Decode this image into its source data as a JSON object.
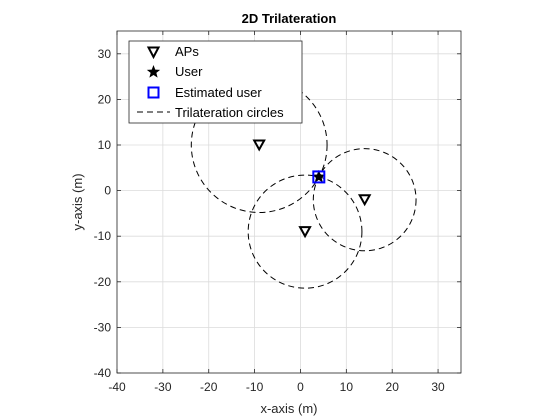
{
  "chart_data": {
    "type": "scatter",
    "title": "2D Trilateration",
    "xlabel": "x-axis (m)",
    "ylabel": "y-axis (m)",
    "xlim": [
      -40,
      35
    ],
    "ylim": [
      -40,
      35
    ],
    "xticks": [
      -40,
      -30,
      -20,
      -10,
      0,
      10,
      20,
      30
    ],
    "yticks": [
      -40,
      -30,
      -20,
      -10,
      0,
      10,
      20,
      30
    ],
    "grid": true,
    "equal_aspect": true,
    "legend_position": "top-left",
    "series": [
      {
        "name": "APs",
        "marker": "triangle-down",
        "color": "#000000",
        "points": [
          [
            -9,
            10
          ],
          [
            1,
            -9
          ],
          [
            14,
            -2
          ]
        ]
      },
      {
        "name": "User",
        "marker": "star",
        "color": "#000000",
        "points": [
          [
            4,
            3
          ]
        ]
      },
      {
        "name": "Estimated user",
        "marker": "square",
        "color": "#0000ff",
        "points": [
          [
            4,
            3
          ]
        ]
      },
      {
        "name": "Trilateration circles",
        "style": "dashed",
        "color": "#000000",
        "circles": [
          {
            "cx": -9,
            "cy": 10,
            "r": 14.8
          },
          {
            "cx": 1,
            "cy": -9,
            "r": 12.4
          },
          {
            "cx": 14,
            "cy": -2,
            "r": 11.2
          }
        ]
      }
    ]
  }
}
